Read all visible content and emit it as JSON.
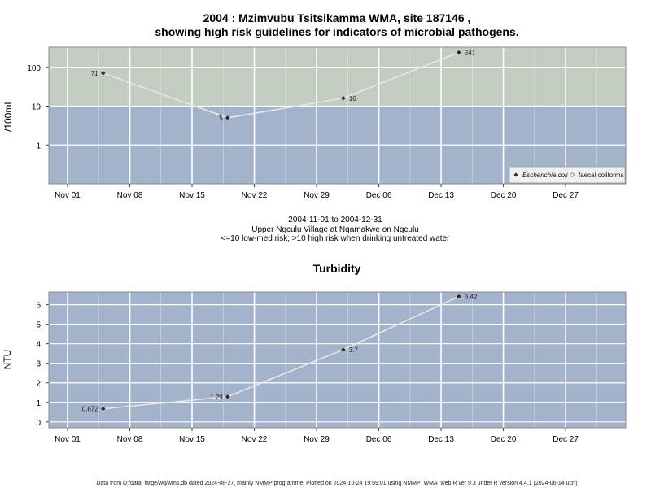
{
  "chart_data": [
    {
      "type": "line",
      "title": "2004 : Mzimvubu Tsitsikamma WMA, site 187146 ,",
      "subtitle": "showing high risk guidelines for indicators of microbial pathogens.",
      "ylabel": "/100mL",
      "y_scale": "log",
      "ylim": [
        0.1,
        330
      ],
      "y_ticks": [
        "1",
        "10",
        "100"
      ],
      "x_ticks": [
        "Nov 01",
        "Nov 08",
        "Nov 15",
        "Nov 22",
        "Nov 29",
        "Dec 06",
        "Dec 13",
        "Dec 20",
        "Dec 27"
      ],
      "guideline": 10,
      "zones": {
        "high_color": "#c3ccc0",
        "low_color": "#a3b3cb"
      },
      "series": [
        {
          "name": "Escherichia coli",
          "x": [
            "2004-11-05",
            "2004-11-19",
            "2004-12-02",
            "2004-12-15"
          ],
          "values": [
            71,
            5,
            16,
            241
          ],
          "labels": [
            "71",
            "5",
            "16",
            "241"
          ]
        }
      ],
      "legend": {
        "placement": "bottom-right",
        "entries": [
          "Escherichia coli",
          "faecal coliforms"
        ]
      },
      "caption": [
        "2004-11-01 to 2004-12-31",
        "Upper Ngculu Village at Nqamakwe on Ngculu",
        "<=10 low-med risk; >10 high risk when drinking untreated water"
      ]
    },
    {
      "type": "line",
      "title": "Turbidity",
      "ylabel": "NTU",
      "ylim": [
        -0.3,
        6.65
      ],
      "y_ticks": [
        "0",
        "1",
        "2",
        "3",
        "4",
        "5",
        "6"
      ],
      "x_ticks": [
        "Nov 01",
        "Nov 08",
        "Nov 15",
        "Nov 22",
        "Nov 29",
        "Dec 06",
        "Dec 13",
        "Dec 20",
        "Dec 27"
      ],
      "series": [
        {
          "x": [
            "2004-11-05",
            "2004-11-19",
            "2004-12-02",
            "2004-12-15"
          ],
          "values": [
            0.672,
            1.29,
            3.7,
            6.42
          ],
          "labels": [
            "0.672",
            "1.29",
            "3.7",
            "6.42"
          ]
        }
      ]
    }
  ],
  "footer": "Data from D:/data_large/wq/wms.db dated 2024-08-27, mainly NMMP programme. Plotted on 2024-10-24 19:59:01 using NMMP_WMA_web.R ver 9.3 under R version 4.4.1 (2024-06-14 ucrt)"
}
